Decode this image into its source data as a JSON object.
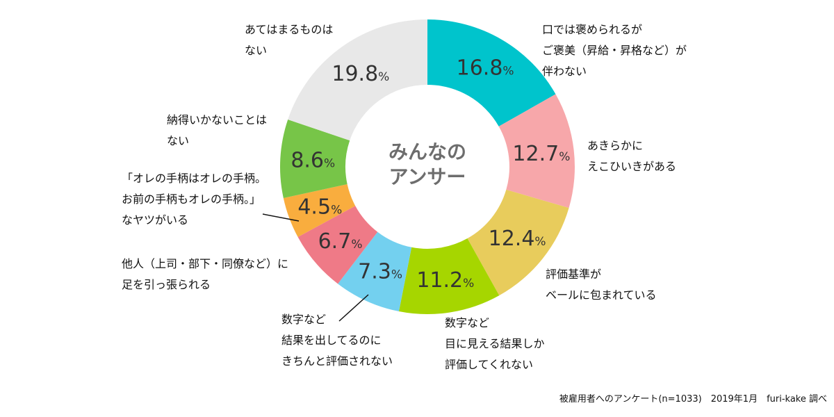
{
  "chart_data": {
    "type": "pie",
    "donut": true,
    "center_label": [
      "みんなの",
      "アンサー"
    ],
    "unit": "%",
    "slices": [
      {
        "label": [
          "口では褒められるが",
          "ご褒美（昇給・昇格など）が",
          "伴わない"
        ],
        "value": 16.8,
        "color": "#00c4cc"
      },
      {
        "label": [
          "あきらかに",
          "えこひいきがある"
        ],
        "value": 12.7,
        "color": "#f7a7aa"
      },
      {
        "label": [
          "評価基準が",
          "ベールに包まれている"
        ],
        "value": 12.4,
        "color": "#e8cc5c"
      },
      {
        "label": [
          "数字など",
          "目に見える結果しか",
          "評価してくれない"
        ],
        "value": 11.2,
        "color": "#a6d600"
      },
      {
        "label": [
          "数字など",
          "結果を出してるのに",
          "きちんと評価されない"
        ],
        "value": 7.3,
        "color": "#73d0ef"
      },
      {
        "label": [
          "他人（上司・部下・同僚など）に",
          "足を引っ張られる"
        ],
        "value": 6.7,
        "color": "#ef7a87"
      },
      {
        "label": [
          "「オレの手柄はオレの手柄。",
          "お前の手柄もオレの手柄。」",
          "なヤツがいる"
        ],
        "value": 4.5,
        "color": "#f9ad3e"
      },
      {
        "label": [
          "納得いかないことは",
          "ない"
        ],
        "value": 8.6,
        "color": "#77c548"
      },
      {
        "label": [
          "あてはまるものは",
          "ない"
        ],
        "value": 19.8,
        "color": "#e8e8e8"
      }
    ]
  },
  "source_note": "被雇用者へのアンケート(n=1033)　2019年1月　furi-kake 調べ"
}
